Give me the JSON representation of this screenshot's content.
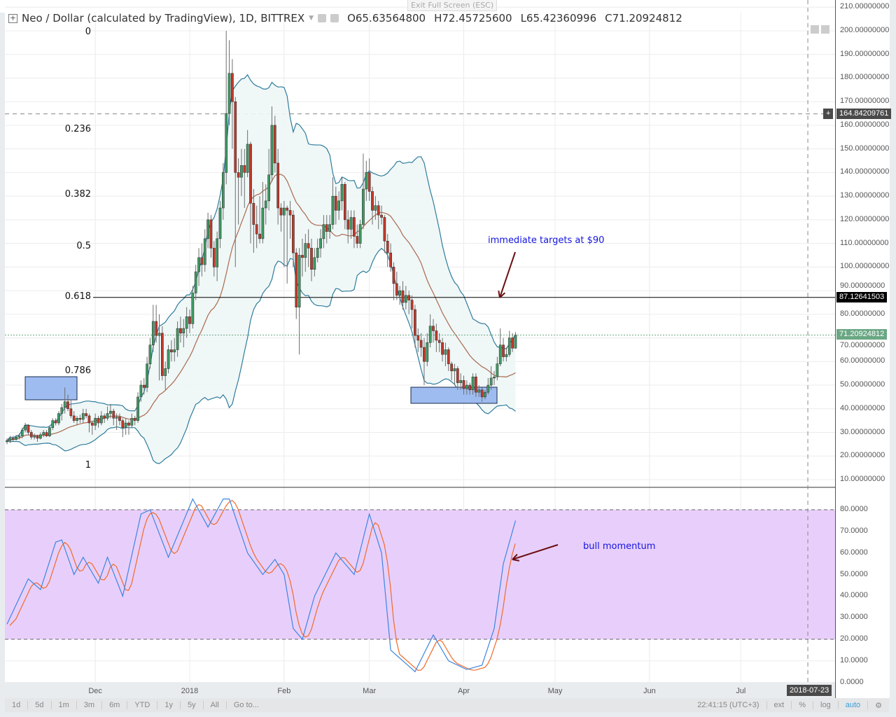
{
  "header": {
    "symbol": "Neo / Dollar (calculated by TradingView), 1D, BITTREX",
    "open": "O65.63564800",
    "high": "H72.45725600",
    "low": "L65.42360996",
    "close": "C71.20924812"
  },
  "exit_fullscreen": "Exit Full Screen (ESC)",
  "colors": {
    "up": "#3e9a63",
    "down": "#c0392b",
    "wick": "#6e6e6e",
    "band": "#2f7c9c",
    "band_fill": "#eef6f6",
    "ma": "#a86a4e",
    "stoch_k": "#3d85e0",
    "stoch_d": "#f06a2a",
    "stoch_band": "#e8cffb",
    "last_price": "#6aa784",
    "annotation": "#1515e0",
    "arrow": "#6b0f12",
    "box": "#9ebcf0"
  },
  "fib_levels": [
    {
      "label": "0",
      "price": 202
    },
    {
      "label": "0.236",
      "price": 158
    },
    {
      "label": "0.382",
      "price": 130.4
    },
    {
      "label": "0.5",
      "price": 108.3
    },
    {
      "label": "0.618",
      "price": 87.13
    },
    {
      "label": "0.786",
      "price": 55.7
    },
    {
      "label": "1",
      "price": 15.5
    }
  ],
  "price_labels": [
    "210.00000000",
    "200.00000000",
    "190.00000000",
    "180.00000000",
    "170.00000000",
    "160.00000000",
    "150.00000000",
    "140.00000000",
    "130.00000000",
    "120.00000000",
    "110.00000000",
    "100.00000000",
    "90.00000000",
    "80.00000000",
    "70.00000000",
    "60.00000000",
    "50.00000000",
    "40.00000000",
    "30.00000000",
    "20.00000000",
    "10.00000000"
  ],
  "price_tags": {
    "crosshair": "164.84209761",
    "fib_618": "87.12641503",
    "last": "71.20924812"
  },
  "stoch_labels": [
    "80.0000",
    "70.0000",
    "60.0000",
    "50.0000",
    "40.0000",
    "30.0000",
    "20.0000",
    "10.0000",
    "0.0000"
  ],
  "time_labels": [
    {
      "label": "Dec",
      "date": "2017-12-01"
    },
    {
      "label": "2018",
      "date": "2018-01-01"
    },
    {
      "label": "Feb",
      "date": "2018-02-01"
    },
    {
      "label": "Mar",
      "date": "2018-03-01"
    },
    {
      "label": "Apr",
      "date": "2018-04-01"
    },
    {
      "label": "May",
      "date": "2018-05-01"
    },
    {
      "label": "Jun",
      "date": "2018-06-01"
    },
    {
      "label": "Jul",
      "date": "2018-07-01"
    }
  ],
  "cursor_date": "2018-07-23",
  "annotations": {
    "targets": "immediate targets at $90",
    "momentum": "bull momentum"
  },
  "toolbar": {
    "ranges": [
      "1d",
      "5d",
      "1m",
      "3m",
      "6m",
      "YTD",
      "1y",
      "5y",
      "All",
      "Go to..."
    ],
    "clock": "22:41:15 (UTC+3)",
    "ext": "ext",
    "percent": "%",
    "log": "log",
    "auto": "auto"
  },
  "chart_data": {
    "type": "candlestick",
    "ylim": [
      10,
      210
    ],
    "indicators": [
      "Bollinger Bands (20, 2)",
      "SMA 20",
      "Stochastic RSI"
    ],
    "candles": [
      [
        "2017-11-02",
        26,
        27.5,
        25,
        26.5
      ],
      [
        "2017-11-03",
        26.5,
        28.5,
        25.5,
        27.5
      ],
      [
        "2017-11-04",
        27.5,
        28.5,
        26,
        27
      ],
      [
        "2017-11-05",
        27,
        29,
        26.5,
        28
      ],
      [
        "2017-11-06",
        28,
        29.5,
        27,
        28.5
      ],
      [
        "2017-11-07",
        28.5,
        32,
        27.5,
        31
      ],
      [
        "2017-11-08",
        31,
        34,
        30,
        33
      ],
      [
        "2017-11-09",
        33,
        33.5,
        29,
        30
      ],
      [
        "2017-11-10",
        30,
        31,
        27,
        28
      ],
      [
        "2017-11-11",
        28,
        29.5,
        27,
        28.5
      ],
      [
        "2017-11-12",
        28.5,
        29,
        26,
        27.5
      ],
      [
        "2017-11-13",
        27.5,
        30,
        27,
        29
      ],
      [
        "2017-11-14",
        29,
        31,
        28,
        30
      ],
      [
        "2017-11-15",
        30,
        31,
        28,
        28.5
      ],
      [
        "2017-11-16",
        28.5,
        33,
        28,
        32
      ],
      [
        "2017-11-17",
        32,
        36,
        31,
        35
      ],
      [
        "2017-11-18",
        35,
        36,
        33,
        34
      ],
      [
        "2017-11-19",
        34,
        39,
        33,
        38
      ],
      [
        "2017-11-20",
        38,
        42,
        35,
        40.5
      ],
      [
        "2017-11-21",
        40.5,
        49,
        38,
        43
      ],
      [
        "2017-11-22",
        43,
        46,
        39,
        40
      ],
      [
        "2017-11-23",
        40,
        44,
        36,
        37
      ],
      [
        "2017-11-24",
        37,
        39,
        34,
        35
      ],
      [
        "2017-11-25",
        35,
        37,
        33,
        36
      ],
      [
        "2017-11-26",
        36,
        37.5,
        34,
        35.5
      ],
      [
        "2017-11-27",
        35.5,
        40,
        34,
        38
      ],
      [
        "2017-11-28",
        38,
        40,
        36,
        37
      ],
      [
        "2017-11-29",
        37,
        38,
        30,
        34
      ],
      [
        "2017-11-30",
        34,
        35,
        29,
        33
      ],
      [
        "2017-12-01",
        33,
        38,
        31,
        36
      ],
      [
        "2017-12-02",
        36,
        37,
        32,
        34
      ],
      [
        "2017-12-03",
        34,
        39,
        33,
        37
      ],
      [
        "2017-12-04",
        37,
        38,
        34,
        36
      ],
      [
        "2017-12-05",
        36,
        41,
        35,
        38
      ],
      [
        "2017-12-06",
        38,
        42,
        36,
        39
      ],
      [
        "2017-12-07",
        39,
        40,
        33,
        36
      ],
      [
        "2017-12-08",
        36,
        38,
        31,
        36.5
      ],
      [
        "2017-12-09",
        36.5,
        38,
        33,
        35
      ],
      [
        "2017-12-10",
        35,
        36,
        28,
        32
      ],
      [
        "2017-12-11",
        32,
        36,
        29,
        34
      ],
      [
        "2017-12-12",
        34,
        35,
        29,
        33
      ],
      [
        "2017-12-13",
        33,
        38,
        32,
        36
      ],
      [
        "2017-12-14",
        36,
        37,
        33,
        35
      ],
      [
        "2017-12-15",
        35,
        47,
        34,
        45
      ],
      [
        "2017-12-16",
        45,
        52,
        43,
        50
      ],
      [
        "2017-12-17",
        50,
        53,
        46,
        49
      ],
      [
        "2017-12-18",
        49,
        62,
        47,
        59
      ],
      [
        "2017-12-19",
        59,
        70,
        57,
        67
      ],
      [
        "2017-12-20",
        67,
        84,
        64,
        77
      ],
      [
        "2017-12-21",
        77,
        84,
        68,
        71
      ],
      [
        "2017-12-22",
        71,
        80,
        52,
        72
      ],
      [
        "2017-12-23",
        72,
        75,
        52,
        54
      ],
      [
        "2017-12-24",
        54,
        60,
        48,
        57
      ],
      [
        "2017-12-25",
        57,
        67,
        55,
        65
      ],
      [
        "2017-12-26",
        65,
        69,
        60,
        64
      ],
      [
        "2017-12-27",
        64,
        70,
        60,
        65
      ],
      [
        "2017-12-28",
        65,
        77,
        62,
        74
      ],
      [
        "2017-12-29",
        74,
        79,
        68,
        72
      ],
      [
        "2017-12-30",
        72,
        78,
        66,
        74
      ],
      [
        "2017-12-31",
        74,
        83,
        70,
        79
      ],
      [
        "2018-01-01",
        79,
        82,
        72,
        76
      ],
      [
        "2018-01-02",
        76,
        92,
        74,
        89
      ],
      [
        "2018-01-03",
        89,
        101,
        86,
        98
      ],
      [
        "2018-01-04",
        98,
        108,
        92,
        104
      ],
      [
        "2018-01-05",
        104,
        110,
        96,
        101
      ],
      [
        "2018-01-06",
        101,
        116,
        98,
        112
      ],
      [
        "2018-01-07",
        112,
        123,
        108,
        120
      ],
      [
        "2018-01-08",
        120,
        122,
        104,
        108
      ],
      [
        "2018-01-09",
        108,
        111,
        96,
        100
      ],
      [
        "2018-01-10",
        100,
        115,
        94,
        112
      ],
      [
        "2018-01-11",
        112,
        128,
        108,
        125
      ],
      [
        "2018-01-12",
        125,
        144,
        120,
        140
      ],
      [
        "2018-01-13",
        140,
        200,
        135,
        165
      ],
      [
        "2018-01-14",
        165,
        196,
        160,
        182
      ],
      [
        "2018-01-15",
        182,
        188,
        150,
        170
      ],
      [
        "2018-01-16",
        170,
        172,
        100,
        140
      ],
      [
        "2018-01-17",
        140,
        146,
        118,
        138
      ],
      [
        "2018-01-18",
        138,
        150,
        130,
        143
      ],
      [
        "2018-01-19",
        143,
        150,
        125,
        140
      ],
      [
        "2018-01-20",
        140,
        158,
        138,
        152
      ],
      [
        "2018-01-21",
        152,
        153,
        110,
        127
      ],
      [
        "2018-01-22",
        127,
        133,
        106,
        118
      ],
      [
        "2018-01-23",
        118,
        126,
        108,
        114
      ],
      [
        "2018-01-24",
        114,
        130,
        110,
        112
      ],
      [
        "2018-01-25",
        112,
        136,
        110,
        125
      ],
      [
        "2018-01-26",
        125,
        135,
        118,
        128
      ],
      [
        "2018-01-27",
        128,
        150,
        124,
        139
      ],
      [
        "2018-01-28",
        139,
        168,
        136,
        160
      ],
      [
        "2018-01-29",
        160,
        164,
        140,
        144
      ],
      [
        "2018-01-30",
        144,
        150,
        118,
        125
      ],
      [
        "2018-01-31",
        125,
        127,
        115,
        122
      ],
      [
        "2018-02-01",
        122,
        128,
        100,
        125
      ],
      [
        "2018-02-02",
        125,
        126,
        93,
        124
      ],
      [
        "2018-02-03",
        124,
        128,
        112,
        122
      ],
      [
        "2018-02-04",
        122,
        124,
        100,
        106
      ],
      [
        "2018-02-05",
        106,
        108,
        78,
        83
      ],
      [
        "2018-02-06",
        83,
        108,
        63,
        105
      ],
      [
        "2018-02-07",
        105,
        112,
        96,
        104
      ],
      [
        "2018-02-08",
        104,
        114,
        98,
        110
      ],
      [
        "2018-02-09",
        110,
        116,
        100,
        108
      ],
      [
        "2018-02-10",
        108,
        112,
        94,
        99
      ],
      [
        "2018-02-11",
        99,
        108,
        96,
        104
      ],
      [
        "2018-02-12",
        104,
        112,
        102,
        108
      ],
      [
        "2018-02-13",
        108,
        116,
        104,
        112
      ],
      [
        "2018-02-14",
        112,
        122,
        108,
        118
      ],
      [
        "2018-02-15",
        118,
        122,
        110,
        115
      ],
      [
        "2018-02-16",
        115,
        122,
        112,
        118
      ],
      [
        "2018-02-17",
        118,
        138,
        116,
        130
      ],
      [
        "2018-02-18",
        130,
        134,
        118,
        124
      ],
      [
        "2018-02-19",
        124,
        132,
        120,
        128
      ],
      [
        "2018-02-20",
        128,
        138,
        124,
        135
      ],
      [
        "2018-02-21",
        135,
        136,
        116,
        120
      ],
      [
        "2018-02-22",
        120,
        124,
        110,
        116
      ],
      [
        "2018-02-23",
        116,
        124,
        112,
        121
      ],
      [
        "2018-02-24",
        121,
        124,
        108,
        113
      ],
      [
        "2018-02-25",
        113,
        118,
        108,
        110
      ],
      [
        "2018-02-26",
        110,
        120,
        108,
        118
      ],
      [
        "2018-02-27",
        118,
        148,
        116,
        133
      ],
      [
        "2018-02-28",
        133,
        145,
        128,
        140
      ],
      [
        "2018-03-01",
        140,
        146,
        128,
        132
      ],
      [
        "2018-03-02",
        132,
        134,
        118,
        124
      ],
      [
        "2018-03-03",
        124,
        130,
        120,
        126
      ],
      [
        "2018-03-04",
        126,
        128,
        116,
        122
      ],
      [
        "2018-03-05",
        122,
        126,
        118,
        121
      ],
      [
        "2018-03-06",
        121,
        122,
        106,
        111
      ],
      [
        "2018-03-07",
        111,
        114,
        100,
        106
      ],
      [
        "2018-03-08",
        106,
        110,
        98,
        100
      ],
      [
        "2018-03-09",
        100,
        102,
        86,
        93
      ],
      [
        "2018-03-10",
        93,
        98,
        86,
        88
      ],
      [
        "2018-03-11",
        88,
        92,
        84,
        90
      ],
      [
        "2018-03-12",
        90,
        94,
        82,
        85
      ],
      [
        "2018-03-13",
        85,
        92,
        82,
        88
      ],
      [
        "2018-03-14",
        88,
        90,
        80,
        86
      ],
      [
        "2018-03-15",
        86,
        88,
        74,
        82
      ],
      [
        "2018-03-16",
        82,
        84,
        66,
        71
      ],
      [
        "2018-03-17",
        71,
        74,
        64,
        69
      ],
      [
        "2018-03-18",
        69,
        72,
        62,
        66
      ],
      [
        "2018-03-19",
        66,
        70,
        50,
        60
      ],
      [
        "2018-03-20",
        60,
        72,
        58,
        68
      ],
      [
        "2018-03-21",
        68,
        80,
        66,
        75
      ],
      [
        "2018-03-22",
        75,
        78,
        68,
        73
      ],
      [
        "2018-03-23",
        73,
        76,
        64,
        69
      ],
      [
        "2018-03-24",
        69,
        72,
        64,
        68
      ],
      [
        "2018-03-25",
        68,
        70,
        60,
        63
      ],
      [
        "2018-03-26",
        63,
        68,
        58,
        65
      ],
      [
        "2018-03-27",
        65,
        66,
        56,
        59
      ],
      [
        "2018-03-28",
        59,
        60,
        52,
        56
      ],
      [
        "2018-03-29",
        56,
        59,
        50,
        57
      ],
      [
        "2018-03-30",
        57,
        58,
        48,
        51
      ],
      [
        "2018-03-31",
        51,
        55,
        48,
        52
      ],
      [
        "2018-04-01",
        52,
        54,
        46,
        48.5
      ],
      [
        "2018-04-02",
        48.5,
        52,
        46,
        50
      ],
      [
        "2018-04-03",
        50,
        51,
        46,
        48
      ],
      [
        "2018-04-04",
        48,
        55,
        46,
        53.5
      ],
      [
        "2018-04-05",
        53.5,
        55,
        45,
        47
      ],
      [
        "2018-04-06",
        47,
        50,
        45,
        48
      ],
      [
        "2018-04-07",
        48,
        49,
        43,
        45
      ],
      [
        "2018-04-08",
        45,
        48,
        44,
        47
      ],
      [
        "2018-04-09",
        47,
        53,
        46,
        50
      ],
      [
        "2018-04-10",
        50,
        58,
        48,
        53
      ],
      [
        "2018-04-11",
        53,
        56,
        50,
        53.5
      ],
      [
        "2018-04-12",
        53.5,
        62,
        52,
        59
      ],
      [
        "2018-04-13",
        59,
        74,
        58,
        67
      ],
      [
        "2018-04-14",
        67,
        70,
        60,
        62
      ],
      [
        "2018-04-15",
        62,
        66,
        60,
        63
      ],
      [
        "2018-04-16",
        63,
        73,
        62,
        70
      ],
      [
        "2018-04-17",
        70,
        72,
        64,
        65.64
      ],
      [
        "2018-04-18",
        65.64,
        72.46,
        65.42,
        71.21
      ]
    ],
    "stoch_rsi": {
      "ylim": [
        0,
        85
      ],
      "bands": [
        20,
        80
      ],
      "dates": [
        "2017-11-02",
        "2017-11-09",
        "2017-11-13",
        "2017-11-18",
        "2017-11-20",
        "2017-11-24",
        "2017-11-27",
        "2017-12-02",
        "2017-12-05",
        "2017-12-10",
        "2017-12-16",
        "2017-12-19",
        "2017-12-25",
        "2018-01-02",
        "2018-01-07",
        "2018-01-12",
        "2018-01-14",
        "2018-01-20",
        "2018-01-25",
        "2018-01-29",
        "2018-02-01",
        "2018-02-04",
        "2018-02-07",
        "2018-02-11",
        "2018-02-18",
        "2018-02-24",
        "2018-03-01",
        "2018-03-05",
        "2018-03-08",
        "2018-03-16",
        "2018-03-22",
        "2018-03-27",
        "2018-04-02",
        "2018-04-07",
        "2018-04-11",
        "2018-04-14",
        "2018-04-18"
      ],
      "k": [
        27,
        48,
        43,
        65,
        66,
        50,
        58,
        46,
        58,
        40,
        78,
        80,
        58,
        85,
        72,
        85,
        85,
        60,
        50,
        57,
        50,
        25,
        20,
        40,
        60,
        50,
        78,
        60,
        15,
        5,
        22,
        10,
        6,
        8,
        25,
        55,
        75
      ]
    }
  }
}
